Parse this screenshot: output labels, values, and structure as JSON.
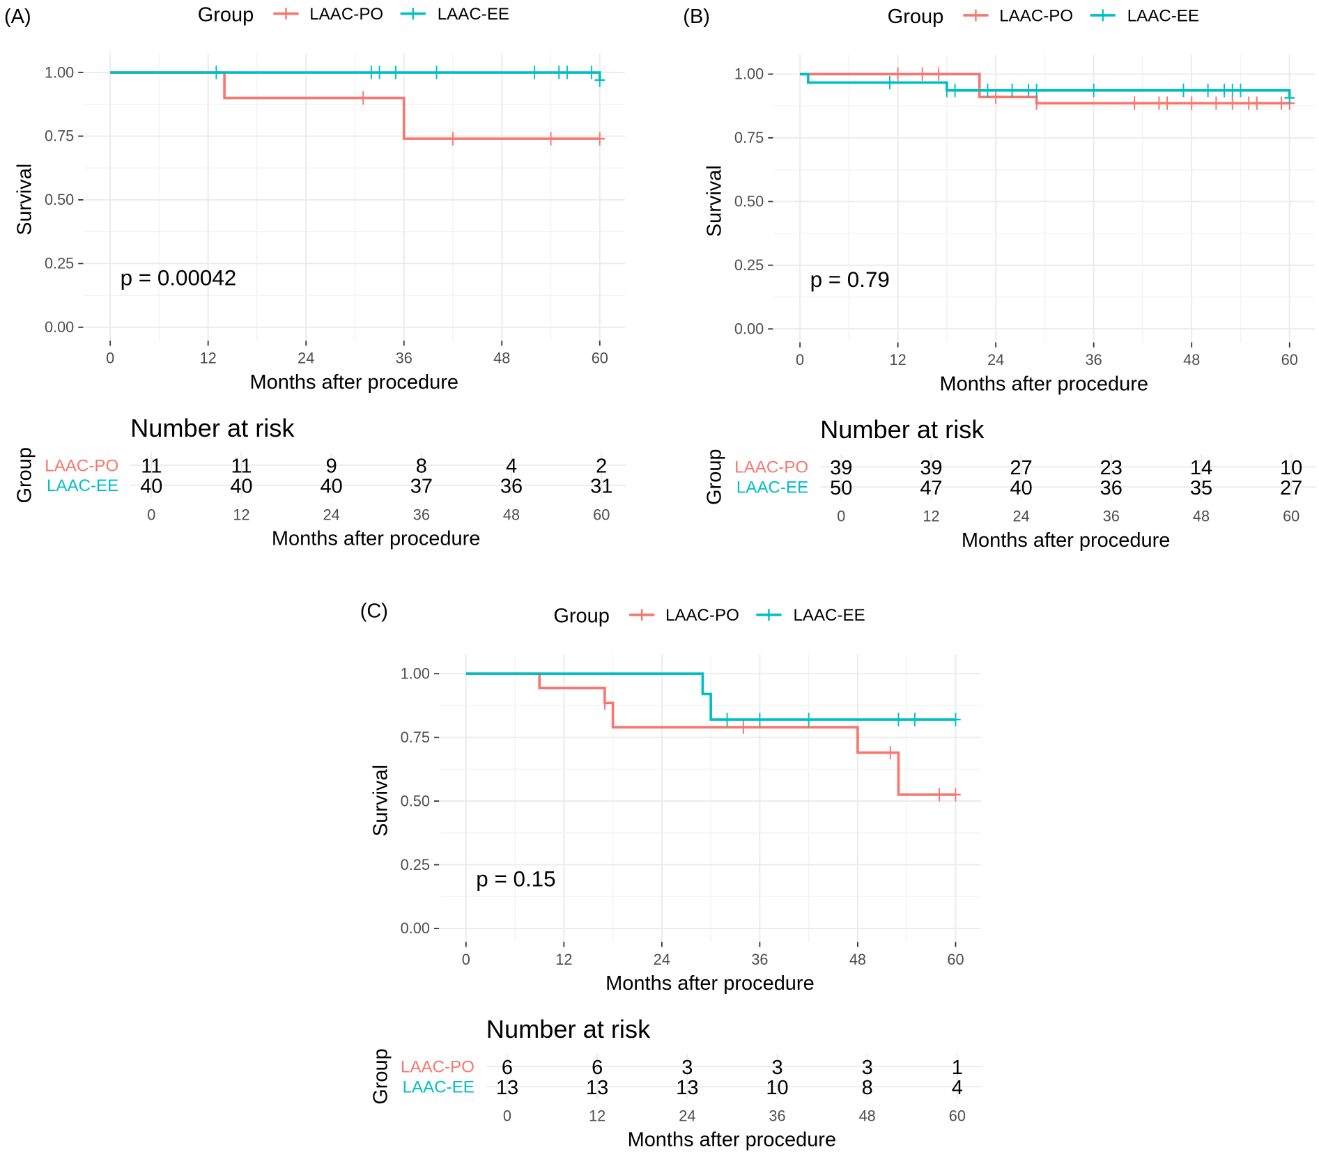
{
  "colors": {
    "LAAC-PO": "#F8766D",
    "LAAC-EE": "#00BFC4"
  },
  "chart_data": [
    {
      "panel": "(A)",
      "type": "line",
      "subtype": "kaplan-meier",
      "legend_title": "Group",
      "legend_placement": "top",
      "xlabel": "Months after procedure",
      "ylabel": "Survival",
      "xlim": [
        0,
        60
      ],
      "ylim": [
        0,
        1
      ],
      "xticks": [
        "0",
        "12",
        "24",
        "36",
        "48",
        "60"
      ],
      "yticks": [
        "0.00",
        "0.25",
        "0.50",
        "0.75",
        "1.00"
      ],
      "grid": true,
      "p_value_text": "p = 0.00042",
      "series": [
        {
          "name": "LAAC-PO",
          "steps": [
            [
              0,
              1.0
            ],
            [
              14,
              0.9
            ],
            [
              36,
              0.74
            ]
          ],
          "end": 60,
          "censored": [
            31,
            42,
            54,
            60
          ]
        },
        {
          "name": "LAAC-EE",
          "steps": [
            [
              0,
              1.0
            ],
            [
              60,
              0.97
            ]
          ],
          "end": 60,
          "censored": [
            13,
            32,
            33,
            35,
            40,
            52,
            55,
            56,
            59,
            60
          ]
        }
      ],
      "risk_table": {
        "title": "Number at risk",
        "ylabel": "Group",
        "xlabel": "Months after procedure",
        "times": [
          "0",
          "12",
          "24",
          "36",
          "48",
          "60"
        ],
        "rows": [
          {
            "name": "LAAC-PO",
            "values": [
              "11",
              "11",
              "9",
              "8",
              "4",
              "2"
            ]
          },
          {
            "name": "LAAC-EE",
            "values": [
              "40",
              "40",
              "40",
              "37",
              "36",
              "31"
            ]
          }
        ]
      }
    },
    {
      "panel": "(B)",
      "type": "line",
      "subtype": "kaplan-meier",
      "legend_title": "Group",
      "legend_placement": "top",
      "xlabel": "Months after procedure",
      "ylabel": "Survival",
      "xlim": [
        0,
        60
      ],
      "ylim": [
        0,
        1
      ],
      "xticks": [
        "0",
        "12",
        "24",
        "36",
        "48",
        "60"
      ],
      "yticks": [
        "0.00",
        "0.25",
        "0.50",
        "0.75",
        "1.00"
      ],
      "grid": true,
      "p_value_text": "p = 0.79",
      "series": [
        {
          "name": "LAAC-PO",
          "steps": [
            [
              0,
              1.0
            ],
            [
              22,
              0.91
            ],
            [
              29,
              0.886
            ]
          ],
          "end": 60,
          "censored": [
            12,
            15,
            17,
            24,
            29,
            41,
            44,
            45,
            48,
            51,
            53,
            55,
            56,
            59,
            60
          ]
        },
        {
          "name": "LAAC-EE",
          "steps": [
            [
              0,
              1.0
            ],
            [
              1,
              0.967
            ],
            [
              18,
              0.936
            ],
            [
              60,
              0.907
            ]
          ],
          "end": 60,
          "censored": [
            11,
            18,
            19,
            23,
            26,
            28,
            29,
            36,
            47,
            50,
            52,
            53,
            54,
            60
          ]
        }
      ],
      "risk_table": {
        "title": "Number at risk",
        "ylabel": "Group",
        "xlabel": "Months after procedure",
        "times": [
          "0",
          "12",
          "24",
          "36",
          "48",
          "60"
        ],
        "rows": [
          {
            "name": "LAAC-PO",
            "values": [
              "39",
              "39",
              "27",
              "23",
              "14",
              "10"
            ]
          },
          {
            "name": "LAAC-EE",
            "values": [
              "50",
              "47",
              "40",
              "36",
              "35",
              "27"
            ]
          }
        ]
      }
    },
    {
      "panel": "(C)",
      "type": "line",
      "subtype": "kaplan-meier",
      "legend_title": "Group",
      "legend_placement": "top",
      "xlabel": "Months after procedure",
      "ylabel": "Survival",
      "xlim": [
        0,
        60
      ],
      "ylim": [
        0,
        1
      ],
      "xticks": [
        "0",
        "12",
        "24",
        "36",
        "48",
        "60"
      ],
      "yticks": [
        "0.00",
        "0.25",
        "0.50",
        "0.75",
        "1.00"
      ],
      "grid": true,
      "p_value_text": "p = 0.15",
      "series": [
        {
          "name": "LAAC-PO",
          "steps": [
            [
              0,
              1.0
            ],
            [
              9,
              0.944
            ],
            [
              17,
              0.885
            ],
            [
              18,
              0.79
            ],
            [
              48,
              0.69
            ],
            [
              53,
              0.525
            ]
          ],
          "end": 60,
          "censored": [
            17,
            34,
            52,
            58,
            60
          ]
        },
        {
          "name": "LAAC-EE",
          "steps": [
            [
              0,
              1.0
            ],
            [
              29,
              0.92
            ],
            [
              30,
              0.82
            ]
          ],
          "end": 60,
          "censored": [
            32,
            36,
            42,
            53,
            55,
            60
          ]
        }
      ],
      "risk_table": {
        "title": "Number at risk",
        "ylabel": "Group",
        "xlabel": "Months after procedure",
        "times": [
          "0",
          "12",
          "24",
          "36",
          "48",
          "60"
        ],
        "rows": [
          {
            "name": "LAAC-PO",
            "values": [
              "6",
              "6",
              "3",
              "3",
              "3",
              "1"
            ]
          },
          {
            "name": "LAAC-EE",
            "values": [
              "13",
              "13",
              "13",
              "10",
              "8",
              "4"
            ]
          }
        ]
      }
    }
  ]
}
